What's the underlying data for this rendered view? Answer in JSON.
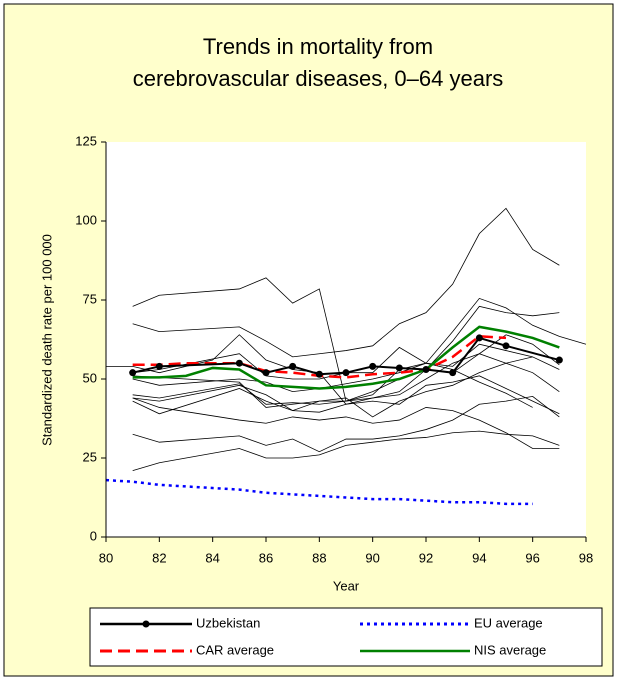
{
  "chart_data": {
    "type": "line",
    "title": [
      "Trends in mortality from",
      "cerebrovascular diseases, 0–64 years"
    ],
    "xlabel": "Year",
    "ylabel": "Standardized death rate per 100 000",
    "xlim": [
      80,
      98
    ],
    "xticks": [
      80,
      82,
      84,
      86,
      88,
      90,
      92,
      94,
      96,
      98
    ],
    "ylim": [
      0,
      125
    ],
    "yticks": [
      0,
      25,
      50,
      75,
      100,
      125
    ],
    "series": [
      {
        "color": "#000000",
        "x": [
          81,
          82,
          85,
          86,
          87,
          88,
          89,
          90,
          91,
          92,
          93,
          94,
          95,
          96,
          97,
          98
        ],
        "values": [
          73,
          76.5,
          78.5,
          82,
          74,
          78.5,
          43,
          45,
          53,
          55,
          65,
          75.5,
          72.5,
          67,
          63.5,
          61
        ]
      },
      {
        "color": "#000000",
        "x": [
          81,
          82,
          85,
          86,
          87,
          88,
          89,
          90,
          91,
          92,
          93,
          94,
          95,
          96,
          97
        ],
        "values": [
          67.5,
          65,
          66.5,
          62,
          57,
          58,
          59,
          60.5,
          67.5,
          71,
          80,
          96,
          104,
          91,
          86
        ]
      },
      {
        "color": "#000000",
        "x": [
          80,
          81,
          82,
          84,
          85,
          86,
          87,
          88,
          89,
          90,
          91,
          92,
          93,
          94,
          95,
          96,
          97
        ],
        "values": [
          54,
          54,
          52,
          56,
          64,
          56,
          53,
          52,
          42,
          44,
          46,
          53,
          62,
          73,
          71,
          70,
          71
        ]
      },
      {
        "color": "#000000",
        "x": [
          81,
          82,
          85,
          86,
          87,
          88,
          89,
          90,
          91,
          92,
          93,
          94,
          95,
          96,
          97
        ],
        "values": [
          44,
          43,
          48,
          45,
          40,
          43,
          43,
          44,
          45,
          50,
          55,
          58,
          64,
          61,
          54.5
        ]
      },
      {
        "color": "#000000",
        "x": [
          81,
          82,
          85,
          86,
          87,
          88,
          89,
          90,
          91,
          92,
          93,
          94,
          95,
          96,
          97
        ],
        "values": [
          45,
          44,
          48.5,
          42,
          42.5,
          42,
          43,
          46,
          50,
          53,
          52,
          58,
          55,
          52,
          46
        ]
      },
      {
        "color": "#000000",
        "x": [
          81,
          82,
          85,
          86,
          87,
          88,
          89,
          90,
          91,
          92,
          93,
          94,
          95,
          96,
          97
        ],
        "values": [
          44,
          41,
          37,
          36,
          38,
          37,
          38,
          36,
          37,
          41,
          40,
          37,
          33,
          28,
          28
        ]
      },
      {
        "color": "#000000",
        "x": [
          81,
          82,
          85,
          86,
          87,
          88,
          89,
          90,
          91,
          92,
          93,
          94,
          95,
          96,
          97
        ],
        "values": [
          43,
          39,
          47,
          43,
          40,
          39.5,
          42,
          43,
          42,
          48,
          49,
          51,
          47,
          43,
          39
        ]
      },
      {
        "color": "#000000",
        "x": [
          81,
          82,
          85,
          86,
          87,
          88,
          89,
          90,
          91,
          92,
          93,
          94,
          95,
          96,
          97
        ],
        "values": [
          32.5,
          30,
          32,
          29,
          31,
          27,
          31,
          31,
          32,
          34,
          37,
          42,
          43,
          44.5,
          38
        ]
      },
      {
        "color": "#000000",
        "x": [
          81,
          82,
          85,
          86,
          87,
          88,
          89,
          90,
          91,
          92,
          93,
          94,
          95,
          96,
          97
        ],
        "values": [
          21,
          23.5,
          28,
          25,
          25,
          26,
          29,
          30,
          31,
          31.5,
          33,
          33.5,
          32.5,
          32,
          29
        ]
      },
      {
        "color": "#000000",
        "x": [
          81,
          82,
          85,
          86,
          87,
          88,
          89,
          90,
          91,
          92,
          93,
          94,
          95,
          96
        ],
        "values": [
          50,
          48,
          50,
          49,
          46,
          47,
          48.5,
          50,
          52,
          55,
          53,
          49,
          45.5,
          41
        ]
      },
      {
        "color": "#000000",
        "x": [
          81,
          82,
          85,
          86,
          87,
          88,
          89,
          90,
          91,
          92,
          93,
          94,
          95,
          96
        ],
        "values": [
          52,
          53,
          58,
          51,
          50,
          50,
          52,
          52,
          60,
          55,
          54,
          61,
          59,
          57
        ]
      },
      {
        "color": "#000000",
        "x": [
          81,
          85,
          86,
          87,
          88,
          89,
          90,
          91,
          92,
          93,
          94,
          95,
          96,
          97
        ],
        "values": [
          51,
          49,
          41,
          42,
          43,
          44,
          38,
          43,
          46,
          48,
          52,
          55,
          57,
          53
        ]
      },
      {
        "name": "EU average",
        "color": "#0000ff",
        "style": "dotted",
        "x": [
          80,
          81,
          82,
          83,
          84,
          85,
          86,
          87,
          88,
          89,
          90,
          91,
          92,
          93,
          94,
          95,
          96
        ],
        "values": [
          18,
          17.5,
          16.5,
          16,
          15.5,
          15,
          14,
          13.5,
          13,
          12.5,
          12,
          12,
          11.5,
          11,
          11,
          10.5,
          10.5
        ]
      },
      {
        "name": "CAR average",
        "color": "#ff0000",
        "style": "dashed",
        "x": [
          81,
          82,
          83,
          84,
          85,
          86,
          87,
          88,
          89,
          90,
          91,
          92,
          93,
          94,
          95
        ],
        "values": [
          54.5,
          54.5,
          55,
          55,
          55,
          52.5,
          52,
          51,
          50.5,
          51.5,
          52,
          53,
          57,
          63.5,
          63
        ]
      },
      {
        "name": "NIS average",
        "color": "#008000",
        "style": "solid",
        "x": [
          81,
          82,
          83,
          84,
          85,
          86,
          87,
          88,
          89,
          90,
          91,
          92,
          93,
          94,
          95,
          96,
          97
        ],
        "values": [
          50.5,
          50.5,
          51,
          53.5,
          53,
          48,
          47.5,
          47,
          47.5,
          48.5,
          50,
          53,
          60,
          66.5,
          65,
          63,
          60
        ]
      },
      {
        "name": "Uzbekistan",
        "color": "#000000",
        "style": "solid",
        "markers": true,
        "x": [
          81,
          82,
          85,
          86,
          87,
          88,
          89,
          90,
          91,
          92,
          93,
          94,
          95,
          97
        ],
        "values": [
          52,
          54,
          55,
          52,
          54,
          51.5,
          52,
          54,
          53.5,
          53,
          52,
          63,
          60.5,
          56
        ]
      }
    ],
    "legend_order": [
      15,
      12,
      13,
      14
    ]
  }
}
